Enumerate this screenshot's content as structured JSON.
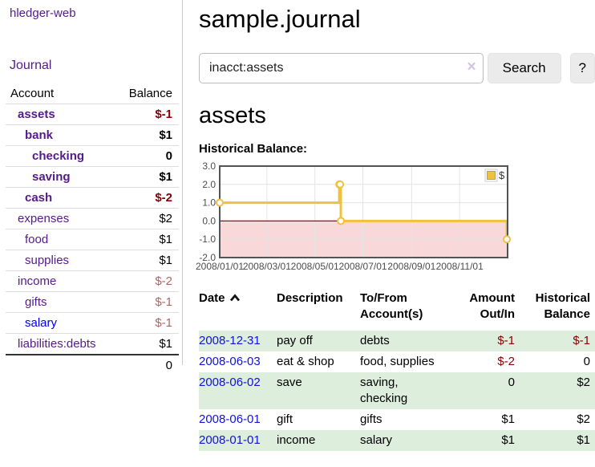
{
  "sidebar": {
    "brand": "hledger-web",
    "nav": {
      "journal_label": "Journal"
    },
    "accounts": {
      "headers": {
        "account": "Account",
        "balance": "Balance"
      },
      "rows": [
        {
          "label": "assets",
          "depth": 1,
          "bold": true,
          "link_color": "purple",
          "balance": "$-1",
          "balance_style": "neg-strong"
        },
        {
          "label": "bank",
          "depth": 2,
          "bold": true,
          "link_color": "purple",
          "balance": "$1",
          "balance_style": "pos-strong"
        },
        {
          "label": "checking",
          "depth": 3,
          "bold": true,
          "link_color": "purple",
          "balance": "0",
          "balance_style": "pos-strong"
        },
        {
          "label": "saving",
          "depth": 3,
          "bold": true,
          "link_color": "purple",
          "balance": "$1",
          "balance_style": "pos-strong"
        },
        {
          "label": "cash",
          "depth": 2,
          "bold": true,
          "link_color": "purple",
          "balance": "$-2",
          "balance_style": "neg-strong"
        },
        {
          "label": "expenses",
          "depth": 1,
          "bold": false,
          "link_color": "purple",
          "balance": "$2",
          "balance_style": "pos"
        },
        {
          "label": "food",
          "depth": 2,
          "bold": false,
          "link_color": "purple",
          "balance": "$1",
          "balance_style": "pos"
        },
        {
          "label": "supplies",
          "depth": 2,
          "bold": false,
          "link_color": "purple",
          "balance": "$1",
          "balance_style": "pos"
        },
        {
          "label": "income",
          "depth": 1,
          "bold": false,
          "link_color": "purple",
          "balance": "$-2",
          "balance_style": "neg-soft"
        },
        {
          "label": "gifts",
          "depth": 2,
          "bold": false,
          "link_color": "purple",
          "balance": "$-1",
          "balance_style": "neg-soft"
        },
        {
          "label": "salary",
          "depth": 2,
          "bold": false,
          "link_color": "blue",
          "balance": "$-1",
          "balance_style": "neg-soft"
        },
        {
          "label": "liabilities:debts",
          "depth": 1,
          "bold": false,
          "link_color": "purple",
          "balance": "$1",
          "balance_style": "pos"
        }
      ],
      "total": "0"
    }
  },
  "main": {
    "title": "sample.journal",
    "search": {
      "query": "inacct:assets",
      "clear_icon": "×",
      "search_label": "Search",
      "help_label": "?"
    },
    "account_heading": "assets",
    "chart_title": "Historical Balance:",
    "register": {
      "headers": {
        "date": "Date",
        "description": "Description",
        "accounts": "To/From Account(s)",
        "amount": "Amount Out/In",
        "balance": "Historical Balance"
      },
      "sort_icon": "chevron-up",
      "rows": [
        {
          "date": "2008-12-31",
          "description": "pay off",
          "accounts": "debts",
          "amount": "$-1",
          "amount_neg": true,
          "balance": "$-1",
          "balance_neg": true,
          "green": true
        },
        {
          "date": "2008-06-03",
          "description": "eat & shop",
          "accounts": "food, supplies",
          "amount": "$-2",
          "amount_neg": true,
          "balance": "0",
          "balance_neg": false,
          "green": false
        },
        {
          "date": "2008-06-02",
          "description": "save",
          "accounts": "saving, checking",
          "amount": "0",
          "amount_neg": false,
          "balance": "$2",
          "balance_neg": false,
          "green": true
        },
        {
          "date": "2008-06-01",
          "description": "gift",
          "accounts": "gifts",
          "amount": "$1",
          "amount_neg": false,
          "balance": "$2",
          "balance_neg": false,
          "green": false
        },
        {
          "date": "2008-01-01",
          "description": "income",
          "accounts": "salary",
          "amount": "$1",
          "amount_neg": false,
          "balance": "$1",
          "balance_neg": false,
          "green": true
        }
      ]
    }
  },
  "chart_data": {
    "type": "line",
    "title": "Historical Balance:",
    "step": "after",
    "x_range": [
      "2008-01-01",
      "2009-01-01"
    ],
    "ylim": [
      -2,
      3
    ],
    "y_ticks": [
      3,
      2,
      1,
      0,
      -1,
      -2
    ],
    "x_ticks": [
      "2008/01/01",
      "2008/03/01",
      "2008/05/01",
      "2008/07/01",
      "2008/09/01",
      "2008/11/01"
    ],
    "grid": true,
    "legend": {
      "label": "$",
      "position": "top-right"
    },
    "series": [
      {
        "name": "$",
        "color": "#EDC240",
        "points": [
          {
            "x": "2008-01-01",
            "y": 1
          },
          {
            "x": "2008-06-01",
            "y": 2
          },
          {
            "x": "2008-06-02",
            "y": 2
          },
          {
            "x": "2008-06-03",
            "y": 0
          },
          {
            "x": "2008-12-31",
            "y": -1
          }
        ]
      }
    ],
    "negative_fill": "#f8d8d8",
    "zero_line_color": "#aa0000"
  },
  "colors": {
    "link_visited": "#551a8b",
    "link_unvisited": "#0000ee",
    "negative_strong": "#8b0000",
    "negative_soft": "#b06565",
    "row_green": "#ddeedd",
    "chart_line": "#EDC240",
    "chart_border": "#545454"
  }
}
